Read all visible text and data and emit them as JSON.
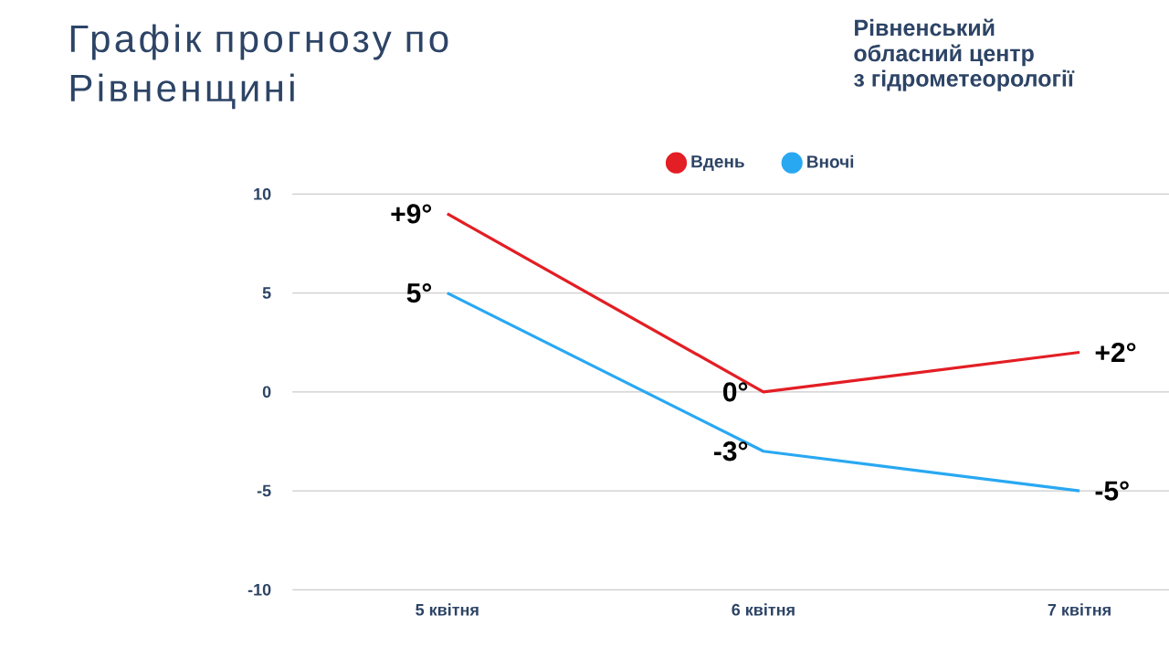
{
  "chart_data": {
    "type": "line",
    "title": "Графік прогнозу по Рівненщині",
    "annotations": [
      "Рівненський",
      "обласний центр",
      "з гідрометеорології"
    ],
    "categories": [
      "5 квітня",
      "6 квітня",
      "7 квітня"
    ],
    "series": [
      {
        "name": "Вдень",
        "color": "#e31e24",
        "values": [
          9,
          0,
          2
        ],
        "value_labels": [
          "+9°",
          "0°",
          "+2°"
        ]
      },
      {
        "name": "Вночі",
        "color": "#29a8f2",
        "values": [
          5,
          -3,
          -5
        ],
        "value_labels": [
          "5°",
          "-3°",
          "-5°"
        ]
      }
    ],
    "ylim": [
      -10,
      10
    ],
    "yticks": [
      -10,
      -5,
      0,
      5,
      10
    ],
    "grid": "y",
    "legend": "top"
  }
}
